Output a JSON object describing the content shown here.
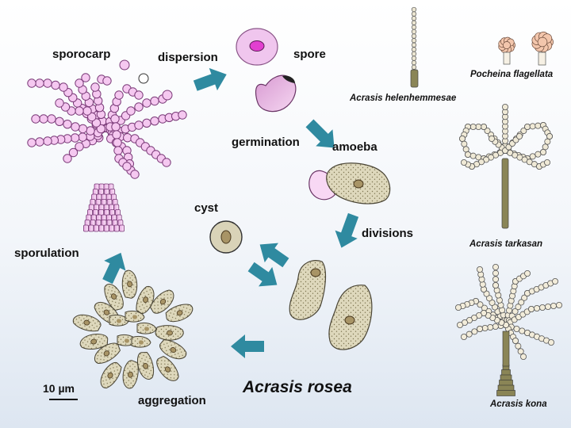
{
  "title": "Acrasis rosea",
  "stages": {
    "sporocarp": "sporocarp",
    "dispersion": "dispersion",
    "spore": "spore",
    "germination": "germination",
    "amoeba": "amoeba",
    "divisions": "divisions",
    "cyst": "cyst",
    "sporulation": "sporulation",
    "aggregation": "aggregation"
  },
  "scale_bar": "10 µm",
  "species": {
    "helenhemmesae": "Acrasis helenhemmesae",
    "pocheina": "Pocheina flagellata",
    "tarkasan": "Acrasis tarkasan",
    "kona": "Acrasis kona"
  },
  "colors": {
    "arrow": "#2f8aa0",
    "pink": "#f5c8f0",
    "pink_stroke": "#7a3a78",
    "beige": "#ded8bc",
    "beige_stroke": "#4a4535",
    "nucleus": "#a89466",
    "peach": "#f3c6ac"
  }
}
